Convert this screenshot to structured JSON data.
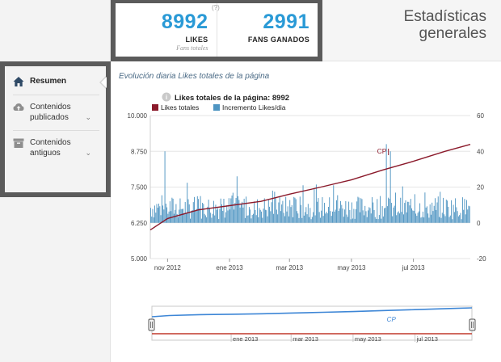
{
  "stats": {
    "help": "(?)",
    "likes": {
      "value": "8992",
      "label": "LIKES",
      "sub": "Fans totales"
    },
    "fans_ganados": {
      "value": "2991",
      "label": "FANS GANADOS"
    }
  },
  "header": {
    "title": "Estadísticas generales"
  },
  "sidebar": {
    "items": [
      {
        "label": "Resumen",
        "icon": "home-icon",
        "active": true
      },
      {
        "label": "Contenidos publicados",
        "icon": "cloud-upload-icon",
        "expandable": true
      },
      {
        "label": "Contenidos antiguos",
        "icon": "archive-icon",
        "expandable": true
      }
    ]
  },
  "main": {
    "section_title": "Evolución diaria Likes totales de la página"
  },
  "colors": {
    "accent": "#2a9ad6",
    "likes_line": "#8b1a2b",
    "bars": "#4f95c2",
    "navigator_line": "#3d86d6",
    "navigator_base": "#c0392b"
  },
  "chart_data": {
    "type": "line",
    "title": "Likes totales de la página: 8992",
    "series": [
      {
        "name": "Likes totales",
        "axis": "left",
        "type": "line",
        "x": [
          "2012-10-15",
          "2012-11-01",
          "2012-12-01",
          "2013-01-01",
          "2013-02-01",
          "2013-03-01",
          "2013-04-01",
          "2013-05-01",
          "2013-06-01",
          "2013-07-01",
          "2013-08-01",
          "2013-08-26"
        ],
        "values": [
          6000,
          6400,
          6700,
          6850,
          7000,
          7250,
          7500,
          7750,
          8100,
          8400,
          8750,
          8992
        ]
      },
      {
        "name": "Incremento Likes/dia",
        "axis": "right",
        "type": "bar",
        "approx_mean": 9,
        "approx_range": [
          0,
          44
        ]
      }
    ],
    "x_ticks": [
      "nov 2012",
      "ene 2013",
      "mar 2013",
      "may 2013",
      "jul 2013"
    ],
    "y_left_ticks": [
      "10.000",
      "8.750",
      "7.500",
      "6.250",
      "5.000"
    ],
    "y_left_range": [
      5000,
      10000
    ],
    "y_right_ticks": [
      "60",
      "40",
      "20",
      "0",
      "-20"
    ],
    "y_right_range": [
      -20,
      60
    ],
    "annotation": {
      "label": "CP",
      "x": "2013-06-08"
    },
    "navigator": {
      "ticks": [
        "ene 2013",
        "mar 2013",
        "may 2013",
        "jul 2013"
      ],
      "annotation": "CP"
    },
    "grid": true,
    "legend": "top-left"
  }
}
